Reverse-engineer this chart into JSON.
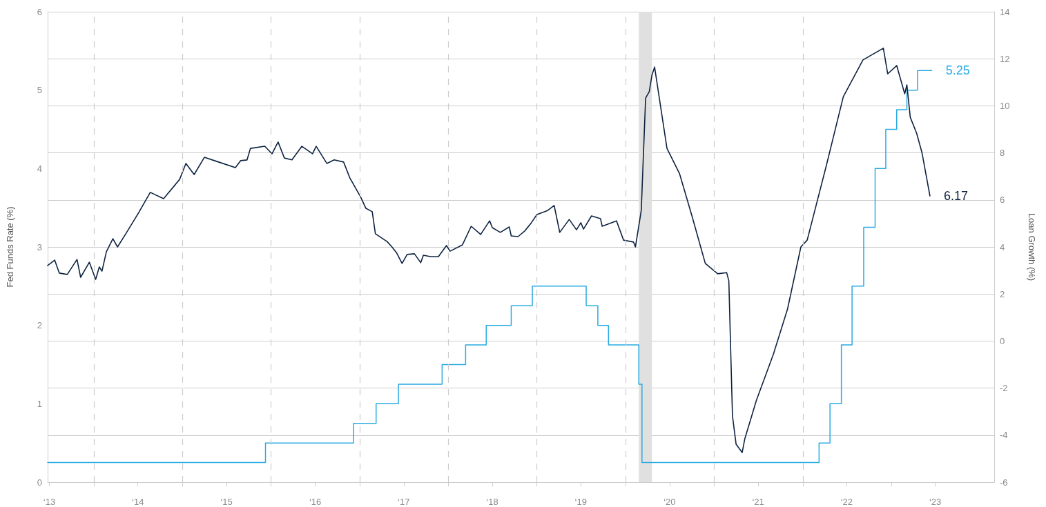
{
  "chart_data": {
    "type": "line",
    "ylabel": "Fed Funds Rate (%)",
    "y2label": "Loan Growth (%)",
    "xlim": [
      "2013-06-24",
      "2024-02-29"
    ],
    "xticks": [
      {
        "value": "2013-07-01",
        "label": "‘13"
      },
      {
        "value": "2014-01-01",
        "label": null
      },
      {
        "value": "2014-07-01",
        "label": "‘14"
      },
      {
        "value": "2015-01-01",
        "label": null
      },
      {
        "value": "2015-07-01",
        "label": "‘15"
      },
      {
        "value": "2016-01-01",
        "label": null
      },
      {
        "value": "2016-07-01",
        "label": "‘16"
      },
      {
        "value": "2017-01-01",
        "label": null
      },
      {
        "value": "2017-07-01",
        "label": "‘17"
      },
      {
        "value": "2018-01-01",
        "label": null
      },
      {
        "value": "2018-07-01",
        "label": "‘18"
      },
      {
        "value": "2019-01-01",
        "label": null
      },
      {
        "value": "2019-07-01",
        "label": "‘19"
      },
      {
        "value": "2020-01-01",
        "label": null
      },
      {
        "value": "2020-07-01",
        "label": "‘20"
      },
      {
        "value": "2021-01-01",
        "label": null
      },
      {
        "value": "2021-07-01",
        "label": "‘21"
      },
      {
        "value": "2022-01-01",
        "label": null
      },
      {
        "value": "2022-07-01",
        "label": "‘22"
      },
      {
        "value": "2023-01-01",
        "label": null
      },
      {
        "value": "2023-07-01",
        "label": "‘23"
      }
    ],
    "ylim": [
      0,
      6
    ],
    "yticks": [
      0,
      1,
      2,
      3,
      4,
      5,
      6
    ],
    "y2lim": [
      -6,
      14
    ],
    "y2ticks": [
      -6,
      -4,
      -2,
      0,
      2,
      4,
      6,
      8,
      10,
      12,
      14
    ],
    "grid": "y",
    "legend": false,
    "marker": "none",
    "bands": [
      {
        "axis": "x",
        "from": "2020-02-25",
        "to": "2020-04-19",
        "color": "#e0e0e0"
      }
    ],
    "ref_lines": [
      {
        "axis": "x",
        "value": "2014-01-01",
        "color": "#cccccc",
        "line_style": "dashed"
      },
      {
        "axis": "x",
        "value": "2015-01-01",
        "color": "#cccccc",
        "line_style": "dashed"
      },
      {
        "axis": "x",
        "value": "2016-01-01",
        "color": "#cccccc",
        "line_style": "dashed"
      },
      {
        "axis": "x",
        "value": "2017-01-01",
        "color": "#cccccc",
        "line_style": "dashed"
      },
      {
        "axis": "x",
        "value": "2018-01-01",
        "color": "#cccccc",
        "line_style": "dashed"
      },
      {
        "axis": "x",
        "value": "2019-01-01",
        "color": "#cccccc",
        "line_style": "dashed"
      },
      {
        "axis": "x",
        "value": "2020-01-01",
        "color": "#cccccc",
        "line_style": "dashed"
      },
      {
        "axis": "x",
        "value": "2021-01-01",
        "color": "#cccccc",
        "line_style": "dashed"
      },
      {
        "axis": "x",
        "value": "2022-01-01",
        "color": "#cccccc",
        "line_style": "dashed"
      }
    ],
    "series": [
      {
        "type": "step",
        "color": "#29abe2",
        "x": [
          "2013-06-24",
          "2015-12-09",
          "2016-12-06",
          "2017-03-09",
          "2017-06-09",
          "2017-12-06",
          "2018-03-13",
          "2018-06-06",
          "2018-09-17",
          "2018-12-13",
          "2019-07-23",
          "2019-09-09",
          "2019-10-23",
          "2020-02-25",
          "2020-03-09",
          "2022-03-09",
          "2022-04-23",
          "2022-06-09",
          "2022-07-23",
          "2022-09-09",
          "2022-10-26",
          "2022-12-09",
          "2023-01-23",
          "2023-03-06",
          "2023-04-19",
          "2023-06-17"
        ],
        "values": [
          0.25,
          0.5,
          0.75,
          1.0,
          1.25,
          1.5,
          1.75,
          2.0,
          2.25,
          2.5,
          2.25,
          2.0,
          1.75,
          1.25,
          0.25,
          0.5,
          1.0,
          1.75,
          2.5,
          3.25,
          4.0,
          4.5,
          4.75,
          5.0,
          5.25,
          5.25
        ],
        "value_labels": [
          null,
          null,
          null,
          null,
          null,
          null,
          null,
          null,
          null,
          null,
          null,
          null,
          null,
          null,
          null,
          null,
          null,
          null,
          null,
          null,
          null,
          null,
          null,
          null,
          null,
          "5.25"
        ]
      },
      {
        "axis": "y2",
        "color": "#0d2240",
        "x": [
          "2013-06-24",
          "2013-07-23",
          "2013-08-11",
          "2013-09-13",
          "2013-10-23",
          "2013-11-07",
          "2013-12-13",
          "2014-01-08",
          "2014-01-23",
          "2014-02-03",
          "2014-02-21",
          "2014-03-20",
          "2014-04-08",
          "2014-05-14",
          "2014-07-05",
          "2014-08-21",
          "2014-10-15",
          "2014-12-20",
          "2015-01-15",
          "2015-02-18",
          "2015-04-01",
          "2015-05-21",
          "2015-08-07",
          "2015-08-29",
          "2015-09-24",
          "2015-10-08",
          "2015-12-06",
          "2016-01-05",
          "2016-01-30",
          "2016-02-25",
          "2016-03-27",
          "2016-05-07",
          "2016-06-20",
          "2016-07-05",
          "2016-08-18",
          "2016-09-17",
          "2016-10-26",
          "2016-11-21",
          "2017-01-05",
          "2017-01-26",
          "2017-02-21",
          "2017-03-06",
          "2017-04-23",
          "2017-05-11",
          "2017-06-02",
          "2017-06-24",
          "2017-07-15",
          "2017-08-14",
          "2017-09-09",
          "2017-09-20",
          "2017-10-19",
          "2017-11-21",
          "2017-12-24",
          "2018-01-08",
          "2018-02-28",
          "2018-04-05",
          "2018-05-14",
          "2018-06-20",
          "2018-07-01",
          "2018-08-03",
          "2018-09-09",
          "2018-09-17",
          "2018-10-15",
          "2018-11-11",
          "2018-12-09",
          "2019-01-01",
          "2019-02-14",
          "2019-03-13",
          "2019-04-05",
          "2019-05-14",
          "2019-06-13",
          "2019-07-01",
          "2019-07-12",
          "2019-08-14",
          "2019-09-20",
          "2019-09-27",
          "2019-11-25",
          "2019-12-24",
          "2020-02-03",
          "2020-02-11",
          "2020-03-06",
          "2020-03-24",
          "2020-04-08",
          "2020-04-19",
          "2020-04-30",
          "2020-06-20",
          "2020-08-11",
          "2020-10-01",
          "2020-11-25",
          "2021-01-15",
          "2021-02-21",
          "2021-03-02",
          "2021-03-17",
          "2021-04-01",
          "2021-04-26",
          "2021-05-07",
          "2021-06-24",
          "2021-09-02",
          "2021-10-30",
          "2021-12-24",
          "2022-01-19",
          "2022-04-08",
          "2022-06-17",
          "2022-09-06",
          "2022-11-29",
          "2022-12-17",
          "2023-01-23",
          "2023-02-25",
          "2023-03-06",
          "2023-03-20",
          "2023-04-15",
          "2023-05-07",
          "2023-06-09"
        ],
        "values": [
          3.21,
          3.44,
          2.89,
          2.83,
          3.47,
          2.71,
          3.35,
          2.62,
          3.15,
          2.97,
          3.79,
          4.35,
          4.0,
          4.59,
          5.47,
          6.32,
          6.05,
          6.87,
          7.55,
          7.08,
          7.81,
          7.64,
          7.37,
          7.67,
          7.7,
          8.19,
          8.28,
          7.96,
          8.46,
          7.78,
          7.7,
          8.28,
          7.96,
          8.28,
          7.55,
          7.7,
          7.61,
          6.93,
          6.11,
          5.64,
          5.5,
          4.56,
          4.23,
          4.03,
          3.74,
          3.3,
          3.68,
          3.71,
          3.33,
          3.65,
          3.59,
          3.59,
          4.06,
          3.82,
          4.09,
          4.88,
          4.53,
          5.11,
          4.82,
          4.62,
          4.85,
          4.47,
          4.44,
          4.67,
          5.03,
          5.38,
          5.55,
          5.76,
          4.62,
          5.17,
          4.73,
          5.03,
          4.76,
          5.32,
          5.2,
          4.88,
          5.11,
          4.29,
          4.21,
          4.0,
          5.55,
          10.33,
          10.6,
          11.3,
          11.65,
          8.19,
          7.11,
          5.32,
          3.3,
          2.86,
          2.91,
          2.56,
          -3.18,
          -4.39,
          -4.74,
          -4.15,
          -2.51,
          -0.55,
          1.36,
          4.0,
          4.29,
          7.46,
          10.39,
          11.95,
          12.45,
          11.36,
          11.71,
          10.51,
          10.89,
          9.51,
          8.84,
          8.02,
          6.17
        ],
        "value_labels": [
          null,
          null,
          null,
          null,
          null,
          null,
          null,
          null,
          null,
          null,
          null,
          null,
          null,
          null,
          null,
          null,
          null,
          null,
          null,
          null,
          null,
          null,
          null,
          null,
          null,
          null,
          null,
          null,
          null,
          null,
          null,
          null,
          null,
          null,
          null,
          null,
          null,
          null,
          null,
          null,
          null,
          null,
          null,
          null,
          null,
          null,
          null,
          null,
          null,
          null,
          null,
          null,
          null,
          null,
          null,
          null,
          null,
          null,
          null,
          null,
          null,
          null,
          null,
          null,
          null,
          null,
          null,
          null,
          null,
          null,
          null,
          null,
          null,
          null,
          null,
          null,
          null,
          null,
          null,
          null,
          null,
          null,
          null,
          null,
          null,
          null,
          null,
          null,
          null,
          null,
          null,
          null,
          null,
          null,
          null,
          null,
          null,
          null,
          null,
          null,
          null,
          null,
          null,
          null,
          null,
          null,
          null,
          null,
          null,
          null,
          null,
          null,
          "6.17"
        ]
      }
    ]
  }
}
